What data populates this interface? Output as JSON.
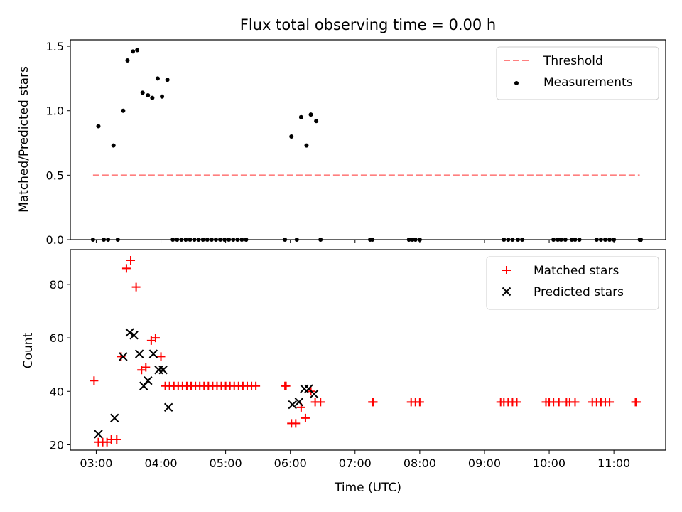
{
  "chart_data": [
    {
      "type": "scatter",
      "title": "Flux total observing time = 0.00 h",
      "xlabel": "",
      "ylabel": "Matched/Predicted stars",
      "ylim": [
        0,
        1.55
      ],
      "yticks": [
        0.0,
        0.5,
        1.0,
        1.5
      ],
      "ytick_labels": [
        "0.0",
        "0.5",
        "1.0",
        "1.5"
      ],
      "xlim": [
        "02:36",
        "11:48"
      ],
      "legend_position": "top-right",
      "series": [
        {
          "name": "Threshold",
          "kind": "line",
          "style": "dashed",
          "color": "#ff7f7f",
          "points": [
            [
              "02:57",
              0.5
            ],
            [
              "11:24",
              0.5
            ]
          ]
        },
        {
          "name": "Measurements",
          "kind": "scatter",
          "color": "#000000",
          "points": [
            [
              "02:57",
              0.0
            ],
            [
              "03:02",
              0.88
            ],
            [
              "03:07",
              0.0
            ],
            [
              "03:11",
              0.0
            ],
            [
              "03:16",
              0.73
            ],
            [
              "03:20",
              0.0
            ],
            [
              "03:25",
              1.0
            ],
            [
              "03:29",
              1.39
            ],
            [
              "03:34",
              1.46
            ],
            [
              "03:38",
              1.47
            ],
            [
              "03:43",
              1.14
            ],
            [
              "03:48",
              1.12
            ],
            [
              "03:52",
              1.1
            ],
            [
              "03:57",
              1.25
            ],
            [
              "04:01",
              1.11
            ],
            [
              "04:06",
              1.24
            ],
            [
              "04:11",
              0.0
            ],
            [
              "04:15",
              0.0
            ],
            [
              "04:19",
              0.0
            ],
            [
              "04:23",
              0.0
            ],
            [
              "04:27",
              0.0
            ],
            [
              "04:31",
              0.0
            ],
            [
              "04:35",
              0.0
            ],
            [
              "04:39",
              0.0
            ],
            [
              "04:43",
              0.0
            ],
            [
              "04:47",
              0.0
            ],
            [
              "04:51",
              0.0
            ],
            [
              "04:55",
              0.0
            ],
            [
              "04:59",
              0.0
            ],
            [
              "05:03",
              0.0
            ],
            [
              "05:07",
              0.0
            ],
            [
              "05:11",
              0.0
            ],
            [
              "05:15",
              0.0
            ],
            [
              "05:19",
              0.0
            ],
            [
              "05:55",
              0.0
            ],
            [
              "06:01",
              0.8
            ],
            [
              "06:06",
              0.0
            ],
            [
              "06:10",
              0.95
            ],
            [
              "06:15",
              0.73
            ],
            [
              "06:19",
              0.97
            ],
            [
              "06:24",
              0.92
            ],
            [
              "06:28",
              0.0
            ],
            [
              "07:14",
              0.0
            ],
            [
              "07:16",
              0.0
            ],
            [
              "07:50",
              0.0
            ],
            [
              "07:53",
              0.0
            ],
            [
              "07:56",
              0.0
            ],
            [
              "08:00",
              0.0
            ],
            [
              "09:18",
              0.0
            ],
            [
              "09:22",
              0.0
            ],
            [
              "09:26",
              0.0
            ],
            [
              "09:31",
              0.0
            ],
            [
              "09:35",
              0.0
            ],
            [
              "10:04",
              0.0
            ],
            [
              "10:08",
              0.0
            ],
            [
              "10:11",
              0.0
            ],
            [
              "10:15",
              0.0
            ],
            [
              "10:21",
              0.0
            ],
            [
              "10:24",
              0.0
            ],
            [
              "10:28",
              0.0
            ],
            [
              "10:44",
              0.0
            ],
            [
              "10:48",
              0.0
            ],
            [
              "10:52",
              0.0
            ],
            [
              "10:56",
              0.0
            ],
            [
              "11:00",
              0.0
            ],
            [
              "11:24",
              0.0
            ],
            [
              "11:25",
              0.0
            ]
          ]
        }
      ]
    },
    {
      "type": "scatter",
      "title": "",
      "xlabel": "Time (UTC)",
      "ylabel": "Count",
      "ylim": [
        18,
        93
      ],
      "yticks": [
        20,
        40,
        60,
        80
      ],
      "ytick_labels": [
        "20",
        "40",
        "60",
        "80"
      ],
      "xlim": [
        "02:36",
        "11:48"
      ],
      "xticks": [
        "03:00",
        "04:00",
        "05:00",
        "06:00",
        "07:00",
        "08:00",
        "09:00",
        "10:00",
        "11:00"
      ],
      "xtick_labels": [
        "03:00",
        "04:00",
        "05:00",
        "06:00",
        "07:00",
        "08:00",
        "09:00",
        "10:00",
        "11:00"
      ],
      "legend_position": "top-right",
      "series": [
        {
          "name": "Matched stars",
          "marker": "+",
          "color": "#ff0000",
          "points": [
            [
              "02:58",
              44
            ],
            [
              "03:02",
              21
            ],
            [
              "03:06",
              21
            ],
            [
              "03:10",
              21
            ],
            [
              "03:14",
              22
            ],
            [
              "03:19",
              22
            ],
            [
              "03:23",
              53
            ],
            [
              "03:28",
              86
            ],
            [
              "03:32",
              89
            ],
            [
              "03:37",
              79
            ],
            [
              "03:42",
              48
            ],
            [
              "03:46",
              49
            ],
            [
              "03:51",
              59
            ],
            [
              "03:55",
              60
            ],
            [
              "04:00",
              53
            ],
            [
              "04:04",
              42
            ],
            [
              "04:08",
              42
            ],
            [
              "04:12",
              42
            ],
            [
              "04:16",
              42
            ],
            [
              "04:20",
              42
            ],
            [
              "04:24",
              42
            ],
            [
              "04:28",
              42
            ],
            [
              "04:32",
              42
            ],
            [
              "04:36",
              42
            ],
            [
              "04:40",
              42
            ],
            [
              "04:44",
              42
            ],
            [
              "04:48",
              42
            ],
            [
              "04:52",
              42
            ],
            [
              "04:56",
              42
            ],
            [
              "05:00",
              42
            ],
            [
              "05:04",
              42
            ],
            [
              "05:08",
              42
            ],
            [
              "05:12",
              42
            ],
            [
              "05:16",
              42
            ],
            [
              "05:20",
              42
            ],
            [
              "05:24",
              42
            ],
            [
              "05:28",
              42
            ],
            [
              "05:55",
              42
            ],
            [
              "05:56",
              42
            ],
            [
              "06:01",
              28
            ],
            [
              "06:05",
              28
            ],
            [
              "06:10",
              34
            ],
            [
              "06:14",
              30
            ],
            [
              "06:19",
              40
            ],
            [
              "06:23",
              36
            ],
            [
              "06:28",
              36
            ],
            [
              "07:16",
              36
            ],
            [
              "07:17",
              36
            ],
            [
              "07:52",
              36
            ],
            [
              "07:56",
              36
            ],
            [
              "08:00",
              36
            ],
            [
              "09:15",
              36
            ],
            [
              "09:18",
              36
            ],
            [
              "09:22",
              36
            ],
            [
              "09:26",
              36
            ],
            [
              "09:30",
              36
            ],
            [
              "09:57",
              36
            ],
            [
              "10:00",
              36
            ],
            [
              "10:04",
              36
            ],
            [
              "10:09",
              36
            ],
            [
              "10:16",
              36
            ],
            [
              "10:19",
              36
            ],
            [
              "10:24",
              36
            ],
            [
              "10:40",
              36
            ],
            [
              "10:44",
              36
            ],
            [
              "10:48",
              36
            ],
            [
              "10:52",
              36
            ],
            [
              "10:56",
              36
            ],
            [
              "11:20",
              36
            ],
            [
              "11:21",
              36
            ]
          ]
        },
        {
          "name": "Predicted stars",
          "marker": "x",
          "color": "#000000",
          "points": [
            [
              "03:02",
              24
            ],
            [
              "03:17",
              30
            ],
            [
              "03:25",
              53
            ],
            [
              "03:31",
              62
            ],
            [
              "03:35",
              61
            ],
            [
              "03:40",
              54
            ],
            [
              "03:44",
              42
            ],
            [
              "03:48",
              44
            ],
            [
              "03:53",
              54
            ],
            [
              "03:58",
              48
            ],
            [
              "04:02",
              48
            ],
            [
              "04:07",
              34
            ],
            [
              "06:02",
              35
            ],
            [
              "06:08",
              36
            ],
            [
              "06:13",
              41
            ],
            [
              "06:17",
              41
            ],
            [
              "06:22",
              39
            ]
          ]
        }
      ]
    }
  ]
}
